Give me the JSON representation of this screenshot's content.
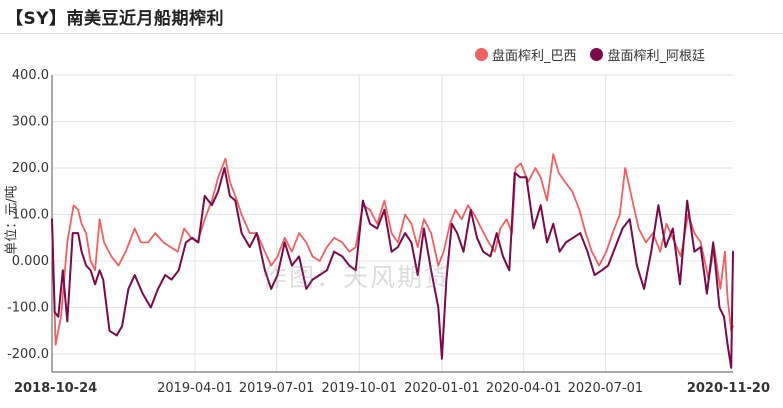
{
  "header": {
    "title": "【SY】南美豆近月船期榨利"
  },
  "watermark": "作图：天风期货",
  "colors": {
    "brazil": "#f06060",
    "argentina": "#7a0a4a",
    "grid": "#e4e4e4",
    "axis": "#333333"
  },
  "chart_data": {
    "type": "line",
    "ylabel": "单位：元/吨",
    "ylim": [
      -250,
      400
    ],
    "yticks": [
      400,
      300,
      200,
      100,
      0,
      -100,
      -200
    ],
    "ytick_labels": [
      "400.0",
      "300.0",
      "200.0",
      "100.0",
      "0.000",
      "-100.0",
      "-200.0"
    ],
    "x_range": [
      "2018-10-24",
      "2020-11-20"
    ],
    "xticks": [
      "2018-10-24",
      "2019-04-01",
      "2019-07-01",
      "2019-10-01",
      "2020-01-01",
      "2020-04-01",
      "2020-07-01",
      "2020-11-20"
    ],
    "grid": true,
    "legend_position": "top-right",
    "series": [
      {
        "name": "盘面榨利_巴西",
        "color": "#f06060",
        "points": [
          [
            "2018-10-24",
            80
          ],
          [
            "2018-10-28",
            -180
          ],
          [
            "2018-11-03",
            -120
          ],
          [
            "2018-11-10",
            40
          ],
          [
            "2018-11-17",
            120
          ],
          [
            "2018-11-22",
            110
          ],
          [
            "2018-11-26",
            80
          ],
          [
            "2018-12-01",
            60
          ],
          [
            "2018-12-06",
            0
          ],
          [
            "2018-12-11",
            -20
          ],
          [
            "2018-12-16",
            90
          ],
          [
            "2018-12-21",
            40
          ],
          [
            "2018-12-29",
            10
          ],
          [
            "2019-01-06",
            -10
          ],
          [
            "2019-01-14",
            20
          ],
          [
            "2019-01-24",
            70
          ],
          [
            "2019-01-31",
            40
          ],
          [
            "2019-02-08",
            40
          ],
          [
            "2019-02-16",
            60
          ],
          [
            "2019-02-25",
            40
          ],
          [
            "2019-03-05",
            30
          ],
          [
            "2019-03-13",
            20
          ],
          [
            "2019-03-20",
            70
          ],
          [
            "2019-03-28",
            50
          ],
          [
            "2019-04-04",
            40
          ],
          [
            "2019-04-12",
            90
          ],
          [
            "2019-04-20",
            130
          ],
          [
            "2019-04-27",
            180
          ],
          [
            "2019-05-05",
            220
          ],
          [
            "2019-05-10",
            170
          ],
          [
            "2019-05-16",
            140
          ],
          [
            "2019-05-23",
            100
          ],
          [
            "2019-06-01",
            60
          ],
          [
            "2019-06-09",
            60
          ],
          [
            "2019-06-18",
            20
          ],
          [
            "2019-06-25",
            -10
          ],
          [
            "2019-07-02",
            10
          ],
          [
            "2019-07-10",
            50
          ],
          [
            "2019-07-18",
            20
          ],
          [
            "2019-07-26",
            60
          ],
          [
            "2019-08-03",
            40
          ],
          [
            "2019-08-10",
            10
          ],
          [
            "2019-08-18",
            0
          ],
          [
            "2019-08-26",
            30
          ],
          [
            "2019-09-03",
            50
          ],
          [
            "2019-09-12",
            40
          ],
          [
            "2019-09-20",
            20
          ],
          [
            "2019-09-27",
            30
          ],
          [
            "2019-10-05",
            120
          ],
          [
            "2019-10-13",
            110
          ],
          [
            "2019-10-21",
            80
          ],
          [
            "2019-10-29",
            130
          ],
          [
            "2019-11-06",
            60
          ],
          [
            "2019-11-13",
            40
          ],
          [
            "2019-11-21",
            100
          ],
          [
            "2019-11-28",
            80
          ],
          [
            "2019-12-05",
            30
          ],
          [
            "2019-12-12",
            90
          ],
          [
            "2019-12-20",
            60
          ],
          [
            "2019-12-28",
            -10
          ],
          [
            "2020-01-03",
            20
          ],
          [
            "2020-01-10",
            80
          ],
          [
            "2020-01-16",
            110
          ],
          [
            "2020-01-23",
            90
          ],
          [
            "2020-01-30",
            120
          ],
          [
            "2020-02-06",
            100
          ],
          [
            "2020-02-14",
            70
          ],
          [
            "2020-02-22",
            40
          ],
          [
            "2020-02-29",
            20
          ],
          [
            "2020-03-06",
            70
          ],
          [
            "2020-03-13",
            90
          ],
          [
            "2020-03-19",
            60
          ],
          [
            "2020-03-23",
            200
          ],
          [
            "2020-03-29",
            210
          ],
          [
            "2020-04-06",
            170
          ],
          [
            "2020-04-14",
            200
          ],
          [
            "2020-04-20",
            180
          ],
          [
            "2020-04-27",
            130
          ],
          [
            "2020-05-04",
            230
          ],
          [
            "2020-05-10",
            190
          ],
          [
            "2020-05-17",
            170
          ],
          [
            "2020-05-25",
            150
          ],
          [
            "2020-06-02",
            110
          ],
          [
            "2020-06-09",
            60
          ],
          [
            "2020-06-16",
            20
          ],
          [
            "2020-06-24",
            -10
          ],
          [
            "2020-07-02",
            20
          ],
          [
            "2020-07-09",
            60
          ],
          [
            "2020-07-17",
            100
          ],
          [
            "2020-07-23",
            200
          ],
          [
            "2020-07-31",
            130
          ],
          [
            "2020-08-07",
            70
          ],
          [
            "2020-08-15",
            40
          ],
          [
            "2020-08-23",
            60
          ],
          [
            "2020-08-31",
            20
          ],
          [
            "2020-09-07",
            80
          ],
          [
            "2020-09-16",
            40
          ],
          [
            "2020-09-23",
            10
          ],
          [
            "2020-10-01",
            100
          ],
          [
            "2020-10-08",
            60
          ],
          [
            "2020-10-15",
            40
          ],
          [
            "2020-10-24",
            -40
          ],
          [
            "2020-10-30",
            30
          ],
          [
            "2020-11-06",
            -60
          ],
          [
            "2020-11-11",
            20
          ],
          [
            "2020-11-14",
            -80
          ],
          [
            "2020-11-18",
            -150
          ],
          [
            "2020-11-20",
            -140
          ]
        ]
      },
      {
        "name": "盘面榨利_阿根廷",
        "color": "#7a0a4a",
        "points": [
          [
            "2018-10-24",
            90
          ],
          [
            "2018-10-27",
            -110
          ],
          [
            "2018-10-31",
            -120
          ],
          [
            "2018-11-05",
            -20
          ],
          [
            "2018-11-10",
            -130
          ],
          [
            "2018-11-16",
            60
          ],
          [
            "2018-11-22",
            60
          ],
          [
            "2018-11-26",
            20
          ],
          [
            "2018-12-01",
            -10
          ],
          [
            "2018-12-06",
            -20
          ],
          [
            "2018-12-11",
            -50
          ],
          [
            "2018-12-16",
            -20
          ],
          [
            "2018-12-20",
            -40
          ],
          [
            "2018-12-27",
            -150
          ],
          [
            "2019-01-04",
            -160
          ],
          [
            "2019-01-10",
            -140
          ],
          [
            "2019-01-17",
            -60
          ],
          [
            "2019-01-24",
            -30
          ],
          [
            "2019-02-02",
            -70
          ],
          [
            "2019-02-11",
            -100
          ],
          [
            "2019-02-19",
            -60
          ],
          [
            "2019-02-27",
            -30
          ],
          [
            "2019-03-06",
            -40
          ],
          [
            "2019-03-14",
            -20
          ],
          [
            "2019-03-22",
            40
          ],
          [
            "2019-03-29",
            50
          ],
          [
            "2019-04-05",
            40
          ],
          [
            "2019-04-12",
            140
          ],
          [
            "2019-04-20",
            120
          ],
          [
            "2019-04-27",
            150
          ],
          [
            "2019-05-04",
            200
          ],
          [
            "2019-05-10",
            140
          ],
          [
            "2019-05-16",
            130
          ],
          [
            "2019-05-23",
            60
          ],
          [
            "2019-06-01",
            30
          ],
          [
            "2019-06-09",
            60
          ],
          [
            "2019-06-18",
            -20
          ],
          [
            "2019-06-25",
            -60
          ],
          [
            "2019-07-02",
            -30
          ],
          [
            "2019-07-10",
            40
          ],
          [
            "2019-07-18",
            -10
          ],
          [
            "2019-07-26",
            10
          ],
          [
            "2019-08-03",
            -60
          ],
          [
            "2019-08-10",
            -40
          ],
          [
            "2019-08-18",
            -30
          ],
          [
            "2019-08-26",
            -20
          ],
          [
            "2019-09-03",
            20
          ],
          [
            "2019-09-12",
            10
          ],
          [
            "2019-09-20",
            -10
          ],
          [
            "2019-09-27",
            -20
          ],
          [
            "2019-10-05",
            130
          ],
          [
            "2019-10-13",
            80
          ],
          [
            "2019-10-21",
            70
          ],
          [
            "2019-10-29",
            110
          ],
          [
            "2019-11-06",
            20
          ],
          [
            "2019-11-13",
            30
          ],
          [
            "2019-11-21",
            60
          ],
          [
            "2019-11-28",
            40
          ],
          [
            "2019-12-05",
            -30
          ],
          [
            "2019-12-12",
            70
          ],
          [
            "2019-12-20",
            -20
          ],
          [
            "2019-12-28",
            -100
          ],
          [
            "2020-01-01",
            -210
          ],
          [
            "2020-01-06",
            -40
          ],
          [
            "2020-01-12",
            80
          ],
          [
            "2020-01-18",
            60
          ],
          [
            "2020-01-25",
            20
          ],
          [
            "2020-02-02",
            110
          ],
          [
            "2020-02-09",
            50
          ],
          [
            "2020-02-16",
            20
          ],
          [
            "2020-02-24",
            10
          ],
          [
            "2020-03-02",
            60
          ],
          [
            "2020-03-09",
            10
          ],
          [
            "2020-03-16",
            -20
          ],
          [
            "2020-03-22",
            190
          ],
          [
            "2020-03-28",
            180
          ],
          [
            "2020-04-04",
            180
          ],
          [
            "2020-04-12",
            70
          ],
          [
            "2020-04-20",
            120
          ],
          [
            "2020-04-27",
            40
          ],
          [
            "2020-05-04",
            80
          ],
          [
            "2020-05-11",
            20
          ],
          [
            "2020-05-18",
            40
          ],
          [
            "2020-05-26",
            50
          ],
          [
            "2020-06-03",
            60
          ],
          [
            "2020-06-11",
            20
          ],
          [
            "2020-06-19",
            -30
          ],
          [
            "2020-06-27",
            -20
          ],
          [
            "2020-07-04",
            -10
          ],
          [
            "2020-07-12",
            30
          ],
          [
            "2020-07-20",
            70
          ],
          [
            "2020-07-28",
            90
          ],
          [
            "2020-08-05",
            -10
          ],
          [
            "2020-08-13",
            -60
          ],
          [
            "2020-08-21",
            20
          ],
          [
            "2020-08-29",
            120
          ],
          [
            "2020-09-06",
            30
          ],
          [
            "2020-09-14",
            70
          ],
          [
            "2020-09-22",
            -50
          ],
          [
            "2020-09-30",
            130
          ],
          [
            "2020-10-08",
            20
          ],
          [
            "2020-10-15",
            30
          ],
          [
            "2020-10-22",
            -70
          ],
          [
            "2020-10-29",
            40
          ],
          [
            "2020-11-05",
            -100
          ],
          [
            "2020-11-10",
            -120
          ],
          [
            "2020-11-14",
            -180
          ],
          [
            "2020-11-18",
            -230
          ],
          [
            "2020-11-20",
            20
          ]
        ]
      }
    ]
  }
}
